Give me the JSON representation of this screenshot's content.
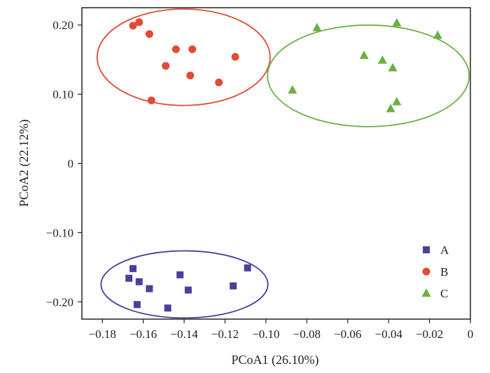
{
  "chart_data": {
    "type": "scatter",
    "title": "",
    "xlabel": "PCoA1 (26.10%)",
    "ylabel": "PCoA2 (22.12%)",
    "xlim": [
      -0.19,
      0.0
    ],
    "ylim": [
      -0.225,
      0.225
    ],
    "x_ticks": [
      -0.18,
      -0.16,
      -0.14,
      -0.12,
      -0.1,
      -0.08,
      -0.06,
      -0.04,
      -0.02,
      0.0
    ],
    "x_tick_labels": [
      "−0.18",
      "−0.16",
      "−0.14",
      "−0.12",
      "−0.10",
      "−0.08",
      "−0.06",
      "−0.04",
      "−0.02",
      "0"
    ],
    "y_ticks": [
      0.2,
      0.1,
      0.0,
      -0.1,
      -0.2
    ],
    "y_tick_labels": [
      "0.20",
      "0.10",
      "0",
      "−0.10",
      "−0.20"
    ],
    "grid": false,
    "legend_position": "bottom-right",
    "series": [
      {
        "name": "A",
        "marker": "square",
        "color": "#4b3f9b",
        "points": [
          [
            -0.165,
            -0.152
          ],
          [
            -0.167,
            -0.166
          ],
          [
            -0.162,
            -0.171
          ],
          [
            -0.157,
            -0.181
          ],
          [
            -0.163,
            -0.204
          ],
          [
            -0.148,
            -0.209
          ],
          [
            -0.142,
            -0.161
          ],
          [
            -0.138,
            -0.183
          ],
          [
            -0.116,
            -0.177
          ],
          [
            -0.109,
            -0.151
          ]
        ],
        "ellipse": {
          "cx": -0.13983,
          "cy": -0.17485,
          "rx": 0.0408,
          "ry": 0.0485
        }
      },
      {
        "name": "B",
        "marker": "circle",
        "color": "#e34a33",
        "points": [
          [
            -0.165,
            0.199
          ],
          [
            -0.162,
            0.204
          ],
          [
            -0.157,
            0.187
          ],
          [
            -0.144,
            0.165
          ],
          [
            -0.136,
            0.165
          ],
          [
            -0.149,
            0.141
          ],
          [
            -0.137,
            0.127
          ],
          [
            -0.123,
            0.117
          ],
          [
            -0.115,
            0.154
          ],
          [
            -0.156,
            0.091
          ]
        ],
        "ellipse": {
          "cx": -0.14023,
          "cy": 0.1534,
          "rx": 0.0423,
          "ry": 0.0697
        }
      },
      {
        "name": "C",
        "marker": "triangle",
        "color": "#6ab045",
        "points": [
          [
            -0.075,
            0.196
          ],
          [
            -0.036,
            0.203
          ],
          [
            -0.016,
            0.185
          ],
          [
            -0.052,
            0.156
          ],
          [
            -0.043,
            0.149
          ],
          [
            -0.038,
            0.138
          ],
          [
            -0.087,
            0.106
          ],
          [
            -0.036,
            0.089
          ],
          [
            -0.039,
            0.079
          ]
        ],
        "ellipse": {
          "cx": -0.04992,
          "cy": 0.1265,
          "rx": 0.0493,
          "ry": 0.0734
        }
      }
    ]
  }
}
